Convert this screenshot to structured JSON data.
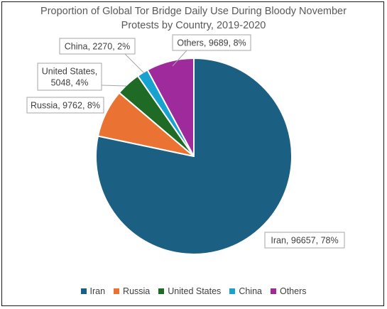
{
  "chart_data": {
    "type": "pie",
    "title_lines": [
      "Proportion of Global Tor Bridge Daily Use During Bloody November",
      "Protests by Country, 2019-2020"
    ],
    "categories": [
      "Iran",
      "Russia",
      "United States",
      "China",
      "Others"
    ],
    "values": [
      96657,
      9762,
      5048,
      2270,
      9689
    ],
    "percent_labels": [
      "78%",
      "8%",
      "4%",
      "2%",
      "8%"
    ],
    "data_labels": [
      [
        "Iran, 96657, 78%"
      ],
      [
        "Russia, 9762, 8%"
      ],
      [
        "United States,",
        "5048, 4%"
      ],
      [
        "China, 2270, 2%"
      ],
      [
        "Others, 9689, 8%"
      ]
    ],
    "colors": [
      "#1b5f83",
      "#ea7232",
      "#1f6b26",
      "#17a2cf",
      "#9e2a9b"
    ],
    "legend_position": "bottom"
  }
}
